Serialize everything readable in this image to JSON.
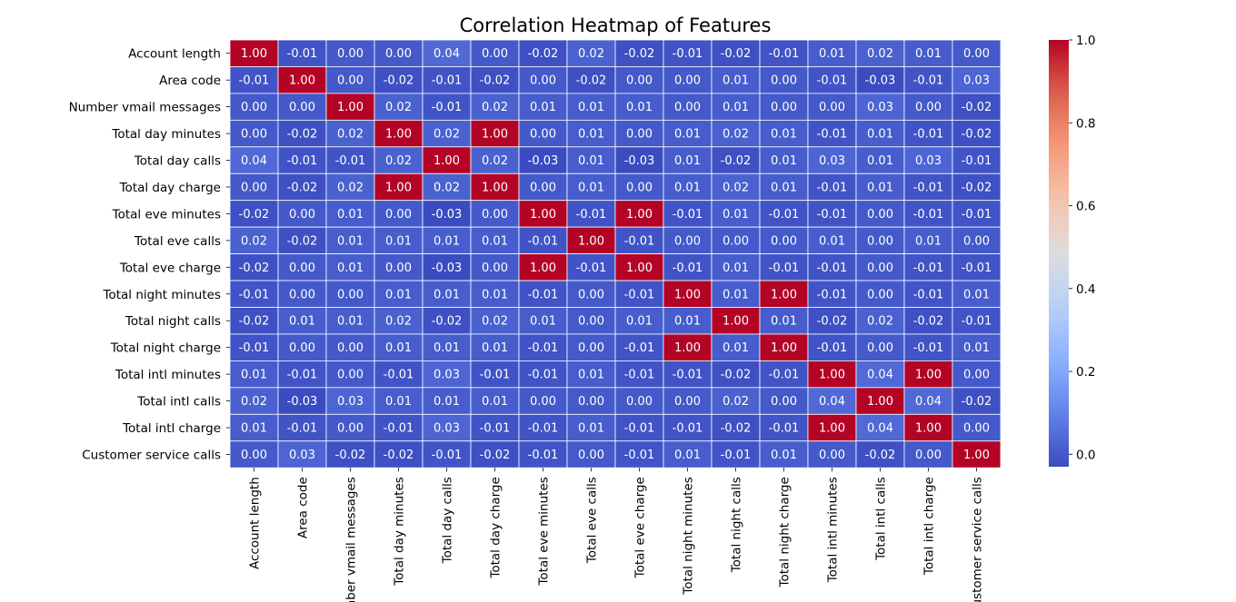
{
  "chart_data": {
    "type": "heatmap",
    "title": "Correlation Heatmap of Features",
    "xlabel": "",
    "ylabel": "",
    "labels": [
      "Account length",
      "Area code",
      "Number vmail messages",
      "Total day minutes",
      "Total day calls",
      "Total day charge",
      "Total eve minutes",
      "Total eve calls",
      "Total eve charge",
      "Total night minutes",
      "Total night calls",
      "Total night charge",
      "Total intl minutes",
      "Total intl calls",
      "Total intl charge",
      "Customer service calls"
    ],
    "matrix": [
      [
        1.0,
        -0.01,
        -0.0,
        0.0,
        0.04,
        0.0,
        -0.02,
        0.02,
        -0.02,
        -0.01,
        -0.02,
        -0.01,
        0.01,
        0.02,
        0.01,
        0.0
      ],
      [
        -0.01,
        1.0,
        -0.0,
        -0.02,
        -0.01,
        -0.02,
        0.0,
        -0.02,
        0.0,
        -0.0,
        0.01,
        -0.0,
        -0.01,
        -0.03,
        -0.01,
        0.03
      ],
      [
        -0.0,
        -0.0,
        1.0,
        0.02,
        -0.01,
        0.02,
        0.01,
        0.01,
        0.01,
        -0.0,
        0.01,
        -0.0,
        -0.0,
        0.03,
        -0.0,
        -0.02
      ],
      [
        0.0,
        -0.02,
        0.02,
        1.0,
        0.02,
        1.0,
        0.0,
        0.01,
        0.0,
        0.01,
        0.02,
        0.01,
        -0.01,
        0.01,
        -0.01,
        -0.02
      ],
      [
        0.04,
        -0.01,
        -0.01,
        0.02,
        1.0,
        0.02,
        -0.03,
        0.01,
        -0.03,
        0.01,
        -0.02,
        0.01,
        0.03,
        0.01,
        0.03,
        -0.01
      ],
      [
        0.0,
        -0.02,
        0.02,
        1.0,
        0.02,
        1.0,
        0.0,
        0.01,
        0.0,
        0.01,
        0.02,
        0.01,
        -0.01,
        0.01,
        -0.01,
        -0.02
      ],
      [
        -0.02,
        0.0,
        0.01,
        0.0,
        -0.03,
        0.0,
        1.0,
        -0.01,
        1.0,
        -0.01,
        0.01,
        -0.01,
        -0.01,
        0.0,
        -0.01,
        -0.01
      ],
      [
        0.02,
        -0.02,
        0.01,
        0.01,
        0.01,
        0.01,
        -0.01,
        1.0,
        -0.01,
        -0.0,
        0.0,
        -0.0,
        0.01,
        0.0,
        0.01,
        0.0
      ],
      [
        -0.02,
        0.0,
        0.01,
        0.0,
        -0.03,
        0.0,
        1.0,
        -0.01,
        1.0,
        -0.01,
        0.01,
        -0.01,
        -0.01,
        0.0,
        -0.01,
        -0.01
      ],
      [
        -0.01,
        -0.0,
        -0.0,
        0.01,
        0.01,
        0.01,
        -0.01,
        -0.0,
        -0.01,
        1.0,
        0.01,
        1.0,
        -0.01,
        -0.0,
        -0.01,
        0.01
      ],
      [
        -0.02,
        0.01,
        0.01,
        0.02,
        -0.02,
        0.02,
        0.01,
        0.0,
        0.01,
        0.01,
        1.0,
        0.01,
        -0.02,
        0.02,
        -0.02,
        -0.01
      ],
      [
        -0.01,
        -0.0,
        -0.0,
        0.01,
        0.01,
        0.01,
        -0.01,
        -0.0,
        -0.01,
        1.0,
        0.01,
        1.0,
        -0.01,
        -0.0,
        -0.01,
        0.01
      ],
      [
        0.01,
        -0.01,
        -0.0,
        -0.01,
        0.03,
        -0.01,
        -0.01,
        0.01,
        -0.01,
        -0.01,
        -0.02,
        -0.01,
        1.0,
        0.04,
        1.0,
        -0.0
      ],
      [
        0.02,
        -0.03,
        0.03,
        0.01,
        0.01,
        0.01,
        0.0,
        0.0,
        0.0,
        -0.0,
        0.02,
        -0.0,
        0.04,
        1.0,
        0.04,
        -0.02
      ],
      [
        0.01,
        -0.01,
        -0.0,
        -0.01,
        0.03,
        -0.01,
        -0.01,
        0.01,
        -0.01,
        -0.01,
        -0.02,
        -0.01,
        1.0,
        0.04,
        1.0,
        -0.0
      ],
      [
        0.0,
        0.03,
        -0.02,
        -0.02,
        -0.01,
        -0.02,
        -0.01,
        0.0,
        -0.01,
        0.01,
        -0.01,
        0.01,
        -0.0,
        -0.02,
        -0.0,
        1.0
      ]
    ],
    "value_format": "0.00",
    "colormap": "coolwarm",
    "vmin": -0.03,
    "vmax": 1.0,
    "colorbar_ticks": [
      0.0,
      0.2,
      0.4,
      0.6,
      0.8,
      1.0
    ],
    "colorbar_tick_labels": [
      "0.0",
      "0.2",
      "0.4",
      "0.6",
      "0.8",
      "1.0"
    ],
    "colorbar_placement": "right",
    "grid_line_color": "#ffffff"
  }
}
